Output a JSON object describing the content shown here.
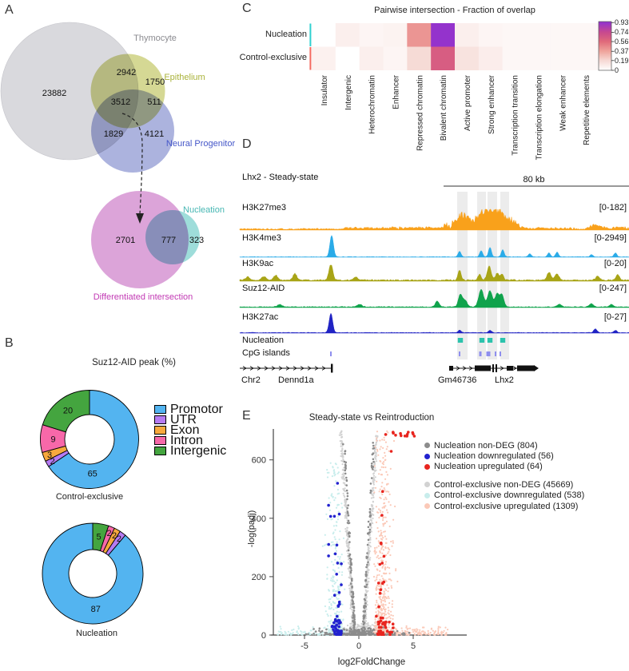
{
  "panel_labels": {
    "a": "A",
    "b": "B",
    "c": "C",
    "d": "D",
    "e": "E"
  },
  "chart_data": [
    {
      "id": "venn_top",
      "type": "venn",
      "set_labels": [
        {
          "text": "Thymocyte",
          "color": "#8b8b90"
        },
        {
          "text": "Epithelium",
          "color": "#a9b23a"
        },
        {
          "text": "Neural Progenitor",
          "color": "#4456c8"
        }
      ],
      "regions": [
        {
          "name": "thymocyte-only",
          "value": 23882
        },
        {
          "name": "thymocyte-epithelium",
          "value": 2942
        },
        {
          "name": "epithelium-only",
          "value": 1750
        },
        {
          "name": "thymocyte-epithelium-neural",
          "value": 3512
        },
        {
          "name": "epithelium-neural",
          "value": 511
        },
        {
          "name": "thymocyte-neural",
          "value": 1829
        },
        {
          "name": "neural-only",
          "value": 4121
        }
      ]
    },
    {
      "id": "venn_bottom",
      "type": "venn",
      "set_labels": [
        {
          "text": "Nucleation",
          "color": "#47b7b3"
        },
        {
          "text": "Differentiated intersection",
          "color": "#c23ab4"
        }
      ],
      "regions": [
        {
          "name": "differentiated-only",
          "value": 2701
        },
        {
          "name": "differentiated-nucleation",
          "value": 777
        },
        {
          "name": "nucleation-only",
          "value": 323
        }
      ]
    },
    {
      "id": "heatmap",
      "type": "heatmap",
      "title": "Pairwise intersection - Fraction of overlap",
      "rows": [
        {
          "label": "Nucleation",
          "color": "#2fd0d0"
        },
        {
          "label": "Control-exclusive",
          "color": "#f4695f"
        }
      ],
      "columns": [
        "Insulator",
        "Intergenic",
        "Heterochromatin",
        "Enhancer",
        "Repressed chromatin",
        "Bivalent chromatin",
        "Active promoter",
        "Strong enhancer",
        "Transcription transition",
        "Transcription elongation",
        "Weak enhancer",
        "Repetitive elements"
      ],
      "values": [
        [
          0,
          0.08,
          0.05,
          0.06,
          0.42,
          0.93,
          0.08,
          0.05,
          0.04,
          0.04,
          0.04,
          0.04
        ],
        [
          0.07,
          0,
          0.08,
          0.05,
          0.18,
          0.63,
          0.14,
          0.09,
          0.04,
          0.04,
          0.04,
          0.04
        ]
      ],
      "colorbar": {
        "ticks": [
          "0.93",
          "0.74",
          "0.56",
          "0.37",
          "0.19",
          "0"
        ],
        "max": 0.95,
        "stops": [
          [
            0,
            "#ffffff"
          ],
          [
            0.19,
            "#f6d9d4"
          ],
          [
            0.37,
            "#efa49c"
          ],
          [
            0.56,
            "#e06a7a"
          ],
          [
            0.74,
            "#c8498e"
          ],
          [
            0.93,
            "#9433cc"
          ]
        ]
      }
    },
    {
      "id": "donuts",
      "type": "pie",
      "title": "Suz12-AID peak (%)",
      "categories": [
        {
          "label": "Promotor",
          "color": "#53b4f0"
        },
        {
          "label": "UTR",
          "color": "#b57bf2"
        },
        {
          "label": "Exon",
          "color": "#f7a93d"
        },
        {
          "label": "Intron",
          "color": "#f768a9"
        },
        {
          "label": "Intergenic",
          "color": "#44a53f"
        }
      ],
      "rings": [
        {
          "label": "Control-exclusive",
          "slices": [
            {
              "category": "Promotor",
              "value": 65
            },
            {
              "category": "UTR",
              "value": 2
            },
            {
              "category": "Exon",
              "value": 3
            },
            {
              "category": "Intron",
              "value": 9
            },
            {
              "category": "Intergenic",
              "value": 20
            }
          ]
        },
        {
          "label": "Nucleation",
          "slices": [
            {
              "category": "Intergenic",
              "value": 5
            },
            {
              "category": "Intron",
              "value": 2
            },
            {
              "category": "Exon",
              "value": 2
            },
            {
              "category": "UTR",
              "value": 2
            },
            {
              "category": "Promotor",
              "value": 87
            }
          ]
        }
      ]
    },
    {
      "id": "genome_tracks",
      "type": "genome-browser",
      "locus_label": "Lhx2 - Steady-state",
      "scale_label": "80 kb",
      "tracks": [
        {
          "name": "H3K27me3",
          "range": "[0-182]",
          "color": "#f9a11b",
          "top": 262,
          "baseline": 288,
          "noise": 2.2,
          "seed": 11,
          "boosts": [
            [
              430,
              560,
              2.5
            ],
            [
              555,
              650,
              9
            ],
            [
              650,
              720,
              2
            ],
            [
              735,
              787,
              3
            ]
          ],
          "peaks": [
            [
              575,
              10,
              5
            ],
            [
              583,
              8,
              5
            ],
            [
              598,
              9,
              5
            ],
            [
              608,
              16,
              5
            ],
            [
              615,
              8,
              5
            ],
            [
              622,
              10,
              5
            ],
            [
              628,
              8,
              6
            ],
            [
              640,
              5,
              8
            ],
            [
              745,
              3,
              6
            ]
          ]
        },
        {
          "name": "H3K4me3",
          "range": "[0-2949]",
          "color": "#2aabe8",
          "top": 294,
          "baseline": 322,
          "noise": 0.8,
          "seed": 22,
          "peaks": [
            [
              415,
              27,
              2.2
            ],
            [
              575,
              7,
              1.8
            ],
            [
              602,
              8,
              1.8
            ],
            [
              613,
              12,
              1.8
            ],
            [
              629,
              9,
              1.8
            ],
            [
              663,
              4,
              1.8
            ],
            [
              687,
              5,
              1.8
            ],
            [
              697,
              6,
              1.8
            ],
            [
              740,
              3,
              1.8
            ],
            [
              770,
              5,
              1.8
            ]
          ]
        },
        {
          "name": "H3K9ac",
          "range": "[0-20]",
          "color": "#a8a416",
          "top": 332,
          "baseline": 352,
          "noise": 2.2,
          "seed": 33,
          "peaks": [
            [
              310,
              4,
              2.5
            ],
            [
              330,
              5,
              2.5
            ],
            [
              345,
              6,
              2.5
            ],
            [
              369,
              8,
              2.5
            ],
            [
              414,
              20,
              2.5
            ],
            [
              445,
              4,
              2.5
            ],
            [
              575,
              12,
              2
            ],
            [
              600,
              7,
              2
            ],
            [
              612,
              18,
              2.5
            ],
            [
              622,
              9,
              2
            ],
            [
              628,
              8,
              2
            ],
            [
              687,
              10,
              2.5
            ],
            [
              697,
              8,
              2.5
            ],
            [
              748,
              5,
              2.5
            ],
            [
              773,
              7,
              2.5
            ]
          ]
        },
        {
          "name": "Suz12-AID",
          "range": "[0-247]",
          "color": "#10a34c",
          "top": 362,
          "baseline": 385,
          "noise": 1.4,
          "seed": 44,
          "peaks": [
            [
              350,
              3,
              3
            ],
            [
              450,
              3,
              3
            ],
            [
              547,
              7,
              2.5
            ],
            [
              576,
              16,
              2.5
            ],
            [
              582,
              8,
              2.5
            ],
            [
              602,
              22,
              3
            ],
            [
              613,
              20,
              3
            ],
            [
              622,
              16,
              2.5
            ],
            [
              628,
              15,
              2.5
            ],
            [
              700,
              3,
              3
            ],
            [
              740,
              4,
              2.5
            ],
            [
              765,
              3,
              2.5
            ]
          ]
        },
        {
          "name": "H3K27ac",
          "range": "[0-27]",
          "color": "#2023c4",
          "top": 392,
          "baseline": 417,
          "noise": 1.0,
          "seed": 55,
          "peaks": [
            [
              414,
              24,
              2.2
            ],
            [
              575,
              3,
              1.8
            ],
            [
              613,
              3,
              1.8
            ],
            [
              745,
              5,
              2
            ],
            [
              770,
              3,
              1.8
            ]
          ]
        }
      ],
      "annotations": [
        {
          "label": "Nucleation",
          "color": "#2cc3ad",
          "sites": [
            576,
            603,
            613,
            629
          ]
        },
        {
          "label": "CpG islands",
          "color": "#8f8fee",
          "sites": [
            [
              414,
              2
            ],
            [
              575,
              2
            ],
            [
              601,
              3
            ],
            [
              611,
              5
            ],
            [
              620,
              2
            ],
            [
              626,
              2
            ]
          ]
        }
      ],
      "highlights": [
        [
          572,
          13
        ],
        [
          597,
          11
        ],
        [
          610,
          12
        ],
        [
          626,
          11
        ]
      ],
      "axis_labels": [
        {
          "text": "Chr2"
        },
        {
          "text": "Dennd1a"
        },
        {
          "text": "Gm46736"
        },
        {
          "text": "Lhx2"
        }
      ]
    },
    {
      "id": "volcano",
      "type": "scatter",
      "title": "Steady-state vs Reintroduction",
      "xlabel": "log2FoldChange",
      "ylabel": "-log(padj)",
      "xticks": [
        -5,
        0,
        5
      ],
      "yticks": [
        0,
        200,
        400,
        600
      ],
      "xlim": [
        -7.9,
        9.9
      ],
      "ylim": [
        0,
        707
      ],
      "series": [
        {
          "key": "nuc_non",
          "legend": "Nucleation non-DEG (804)",
          "count": 804,
          "color": "#8c8c8c",
          "size": 1.3,
          "draw": 520
        },
        {
          "key": "nuc_down",
          "legend": "Nucleation downregulated (56)",
          "count": 56,
          "color": "#2222cf",
          "size": 1.8,
          "draw": 56
        },
        {
          "key": "nuc_up",
          "legend": "Nucleation upregulated (64)",
          "count": 64,
          "color": "#e8251f",
          "size": 1.8,
          "draw": 64
        },
        {
          "key": "ce_non",
          "legend": "Control-exclusive non-DEG (45669)",
          "count": 45669,
          "color": "#d2d2d2",
          "size": 1.1,
          "draw": 1600
        },
        {
          "key": "ce_down",
          "legend": "Control-exclusive downregulated (538)",
          "count": 538,
          "color": "#c8edec",
          "size": 1.1,
          "draw": 430
        },
        {
          "key": "ce_up",
          "legend": "Control-exclusive upregulated (1309)",
          "count": 1309,
          "color": "#fbc9b8",
          "size": 1.1,
          "draw": 650
        }
      ]
    }
  ]
}
